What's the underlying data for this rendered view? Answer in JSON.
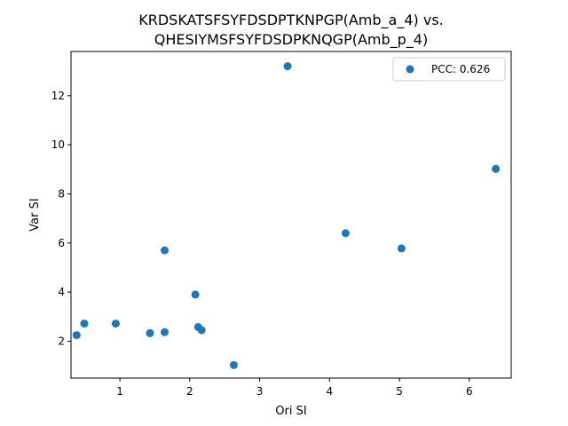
{
  "chart_data": {
    "type": "scatter",
    "title_lines": [
      "KRDSKATSFSYFDSDPTKNPGP(Amb_a_4) vs.",
      "QHESIYMSFSYFDSDPKNQGP(Amb_p_4)"
    ],
    "xlabel": "Ori SI",
    "ylabel": "Var SI",
    "xlim": [
      0.3,
      6.6
    ],
    "ylim": [
      0.5,
      13.8
    ],
    "x_ticks": [
      1,
      2,
      3,
      4,
      5,
      6
    ],
    "y_ticks": [
      2,
      4,
      6,
      8,
      10,
      12
    ],
    "grid": false,
    "legend_position": "top-right",
    "series": [
      {
        "name": "PCC: 0.626",
        "color": "#1f77b4",
        "points": [
          {
            "x": 0.38,
            "y": 2.25
          },
          {
            "x": 0.49,
            "y": 2.72
          },
          {
            "x": 0.94,
            "y": 2.72
          },
          {
            "x": 1.43,
            "y": 2.33
          },
          {
            "x": 1.64,
            "y": 2.37
          },
          {
            "x": 1.64,
            "y": 5.7
          },
          {
            "x": 2.08,
            "y": 3.9
          },
          {
            "x": 2.12,
            "y": 2.58
          },
          {
            "x": 2.17,
            "y": 2.45
          },
          {
            "x": 2.63,
            "y": 1.03
          },
          {
            "x": 3.4,
            "y": 13.2
          },
          {
            "x": 4.23,
            "y": 6.4
          },
          {
            "x": 5.03,
            "y": 5.78
          },
          {
            "x": 6.38,
            "y": 9.02
          }
        ]
      }
    ]
  }
}
